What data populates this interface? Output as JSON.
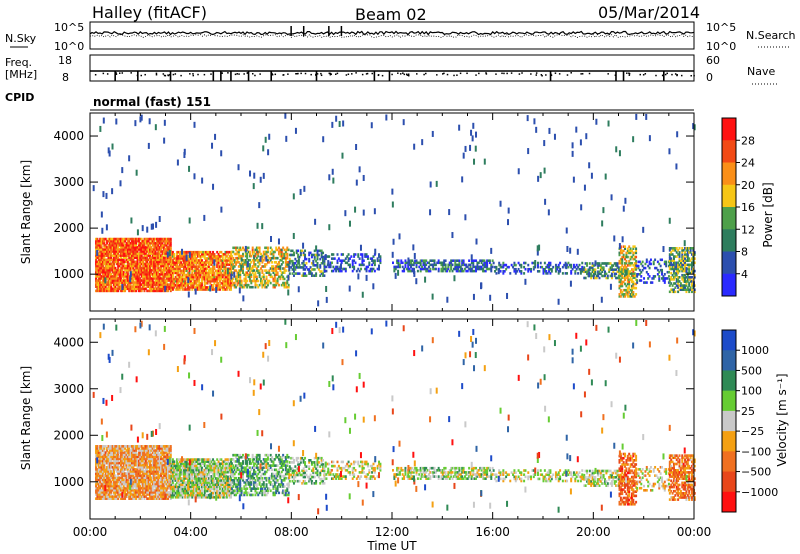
{
  "header": {
    "station": "Halley (fitACF)",
    "beam": "Beam 02",
    "date": "05/Mar/2014"
  },
  "top_panels": {
    "nsky_label": "N.Sky",
    "nsky_scale_top": "10^5",
    "nsky_scale_bottom": "10^0",
    "nsearch_label": "N.Search",
    "nsearch_scale_top": "10^5",
    "nsearch_scale_bottom": "10^0",
    "freq_label_1": "Freq.",
    "freq_label_2": "[MHz]",
    "freq_scale_top": "18",
    "freq_scale_bottom": "8",
    "nave_label": "Nave",
    "nave_scale_top": "60",
    "nave_scale_bottom": "0",
    "cpid_label": "CPID",
    "cpid_value": "normal (fast) 151"
  },
  "chart_data": [
    {
      "type": "heatmap",
      "quantity": "power",
      "ylabel": "Slant Range [km]",
      "xlabel": "",
      "yticks": [
        "1000",
        "2000",
        "3000",
        "4000"
      ],
      "ylim": [
        200,
        4500
      ],
      "xlim_hours": [
        0,
        24
      ],
      "colorbar_label": "Power [dB]",
      "colorbar_ticks": [
        "4",
        "8",
        "12",
        "16",
        "20",
        "24",
        "28"
      ],
      "colorbar_colors": [
        "#2a2aff",
        "#2c4fae",
        "#2e7d5e",
        "#4ea04a",
        "#f6c616",
        "#fa8f18",
        "#f24a15",
        "#ff1111"
      ]
    },
    {
      "type": "heatmap",
      "quantity": "velocity",
      "ylabel": "Slant Range [km]",
      "xlabel": "Time UT",
      "yticks": [
        "1000",
        "2000",
        "3000",
        "4000"
      ],
      "xticks": [
        "00:00",
        "04:00",
        "08:00",
        "12:00",
        "16:00",
        "20:00",
        "00:00"
      ],
      "ylim": [
        200,
        4500
      ],
      "xlim_hours": [
        0,
        24
      ],
      "colorbar_label": "Velocity [m s⁻¹]",
      "colorbar_ticks": [
        "1000",
        "500",
        "100",
        "25",
        "−25",
        "−100",
        "−500",
        "−1000"
      ],
      "colorbar_colors": [
        "#1d4bc9",
        "#2f64a6",
        "#2f8a55",
        "#66cc33",
        "#c9c9c9",
        "#f4a012",
        "#f07020",
        "#e8461a",
        "#ff1010"
      ]
    }
  ]
}
